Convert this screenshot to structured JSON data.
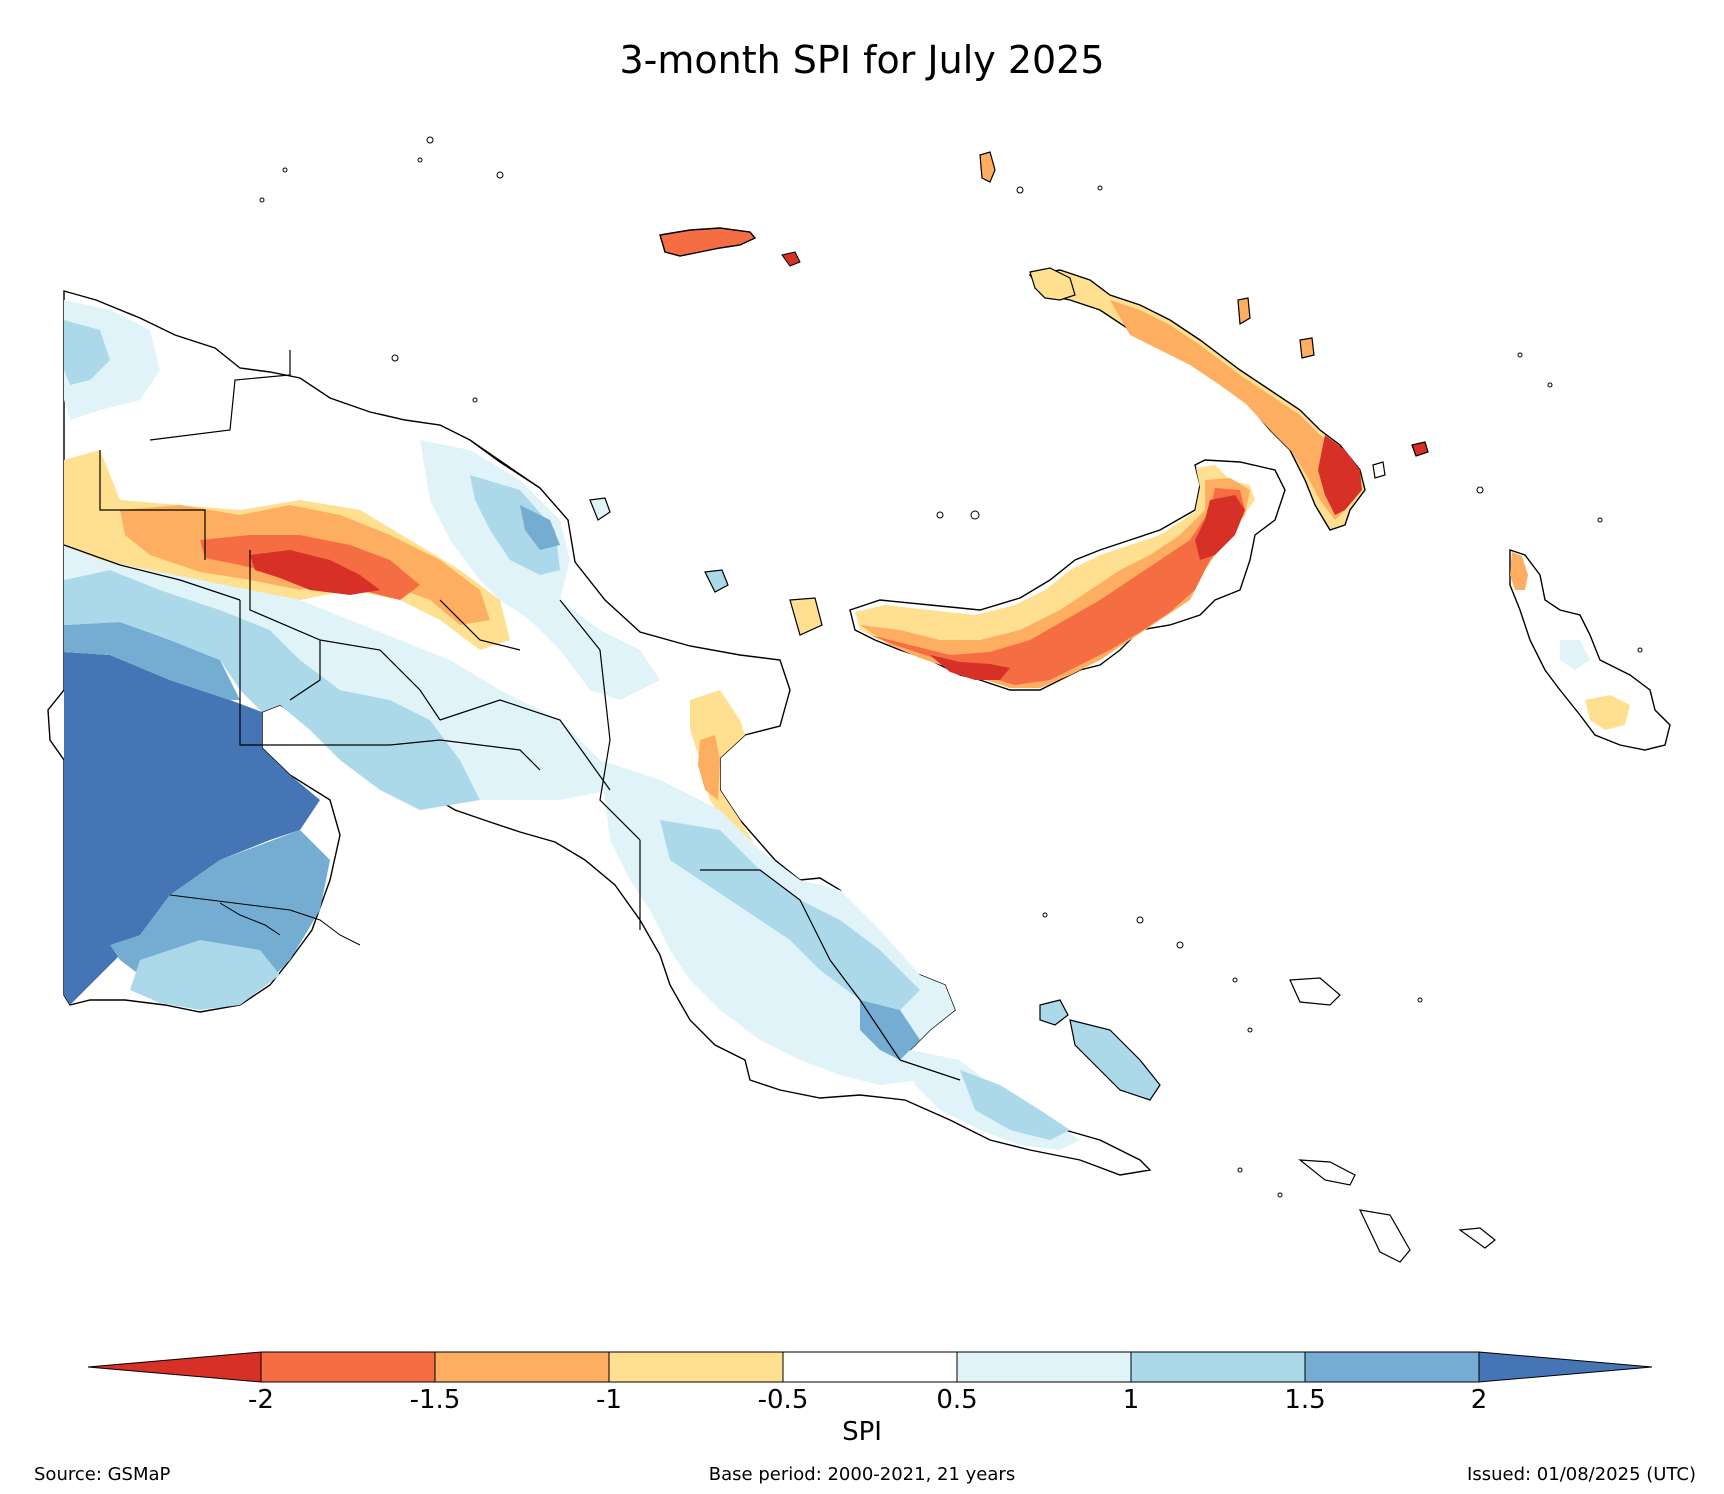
{
  "title": "3-month SPI for July 2025",
  "legend": {
    "label": "SPI",
    "ticks": [
      "-2",
      "-1.5",
      "-1",
      "-0.5",
      "0.5",
      "1",
      "1.5",
      "2"
    ],
    "colors": {
      "below_-2": "#d73027",
      "-2_to_-1.5": "#f46d43",
      "-1.5_to_-1": "#fdae61",
      "-1_to_-0.5": "#fee090",
      "-0.5_to_0.5": "#ffffff",
      "0.5_to_1": "#e0f3f8",
      "1_to_1.5": "#abd9e9",
      "1.5_to_2": "#74add1",
      "above_2": "#4575b4"
    }
  },
  "footer": {
    "source": "Source: GSMaP",
    "base_period": "Base period: 2000-2021, 21 years",
    "issued": "Issued: 01/08/2025 (UTC)"
  }
}
